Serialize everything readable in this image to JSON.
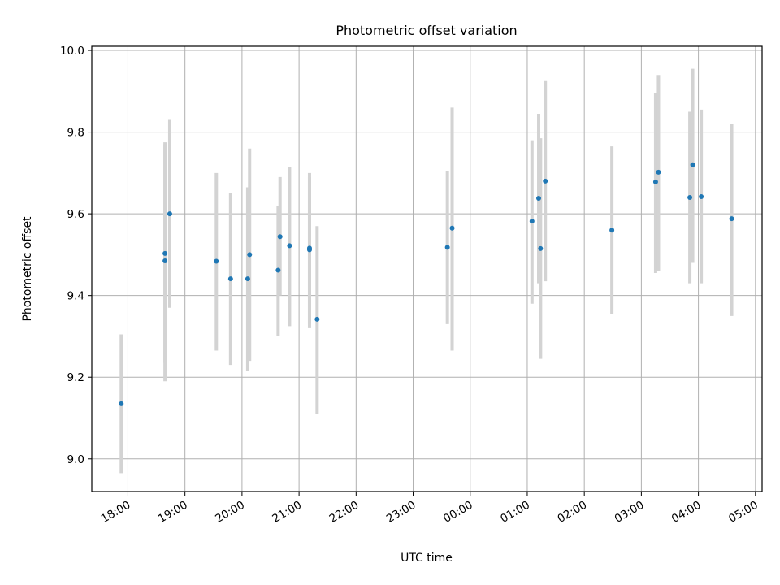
{
  "chart_data": {
    "type": "scatter",
    "title": "Photometric offset variation",
    "xlabel": "UTC time",
    "ylabel": "Photometric offset",
    "x_unit": "UTC time (hh:mm, 18:00 of night start to 05:00 next day)",
    "x_tick_labels": [
      "18:00",
      "19:00",
      "20:00",
      "21:00",
      "22:00",
      "23:00",
      "00:00",
      "01:00",
      "02:00",
      "03:00",
      "04:00",
      "05:00"
    ],
    "xlim": [
      "17:22",
      "05:07"
    ],
    "ylim": [
      8.92,
      10.01
    ],
    "y_ticks": [
      9.0,
      9.2,
      9.4,
      9.6,
      9.8,
      10.0
    ],
    "y_tick_labels": [
      "9.0",
      "9.2",
      "9.4",
      "9.6",
      "9.8",
      "10.0"
    ],
    "grid": true,
    "marker_color": "#1f77b4",
    "errorbar_color": "#d3d3d3",
    "series": [
      {
        "points": [
          {
            "x": "17:53",
            "y": 9.135,
            "ylow": 8.965,
            "yhigh": 9.305
          },
          {
            "x": "18:39",
            "y": 9.485,
            "ylow": 9.19,
            "yhigh": 9.775
          },
          {
            "x": "18:39",
            "y": 9.503,
            "ylow": 9.235,
            "yhigh": 9.77
          },
          {
            "x": "18:44",
            "y": 9.6,
            "ylow": 9.37,
            "yhigh": 9.83
          },
          {
            "x": "19:33",
            "y": 9.484,
            "ylow": 9.265,
            "yhigh": 9.7
          },
          {
            "x": "19:48",
            "y": 9.441,
            "ylow": 9.23,
            "yhigh": 9.65
          },
          {
            "x": "20:06",
            "y": 9.441,
            "ylow": 9.215,
            "yhigh": 9.665
          },
          {
            "x": "20:08",
            "y": 9.5,
            "ylow": 9.24,
            "yhigh": 9.76
          },
          {
            "x": "20:38",
            "y": 9.462,
            "ylow": 9.3,
            "yhigh": 9.62
          },
          {
            "x": "20:40",
            "y": 9.544,
            "ylow": 9.4,
            "yhigh": 9.69
          },
          {
            "x": "20:50",
            "y": 9.522,
            "ylow": 9.325,
            "yhigh": 9.715
          },
          {
            "x": "21:11",
            "y": 9.516,
            "ylow": 9.32,
            "yhigh": 9.7
          },
          {
            "x": "21:11",
            "y": 9.512,
            "ylow": 9.33,
            "yhigh": 9.69
          },
          {
            "x": "21:19",
            "y": 9.342,
            "ylow": 9.11,
            "yhigh": 9.57
          },
          {
            "x": "23:36",
            "y": 9.518,
            "ylow": 9.33,
            "yhigh": 9.705
          },
          {
            "x": "23:41",
            "y": 9.565,
            "ylow": 9.265,
            "yhigh": 9.86
          },
          {
            "x": "01:05",
            "y": 9.582,
            "ylow": 9.38,
            "yhigh": 9.78
          },
          {
            "x": "01:12",
            "y": 9.638,
            "ylow": 9.43,
            "yhigh": 9.845
          },
          {
            "x": "01:14",
            "y": 9.515,
            "ylow": 9.245,
            "yhigh": 9.785
          },
          {
            "x": "01:19",
            "y": 9.68,
            "ylow": 9.435,
            "yhigh": 9.925
          },
          {
            "x": "02:29",
            "y": 9.56,
            "ylow": 9.355,
            "yhigh": 9.765
          },
          {
            "x": "03:15",
            "y": 9.678,
            "ylow": 9.455,
            "yhigh": 9.895
          },
          {
            "x": "03:18",
            "y": 9.702,
            "ylow": 9.46,
            "yhigh": 9.94
          },
          {
            "x": "03:51",
            "y": 9.64,
            "ylow": 9.43,
            "yhigh": 9.85
          },
          {
            "x": "03:54",
            "y": 9.72,
            "ylow": 9.48,
            "yhigh": 9.955
          },
          {
            "x": "04:03",
            "y": 9.642,
            "ylow": 9.43,
            "yhigh": 9.855
          },
          {
            "x": "04:35",
            "y": 9.588,
            "ylow": 9.35,
            "yhigh": 9.82
          }
        ]
      }
    ]
  }
}
